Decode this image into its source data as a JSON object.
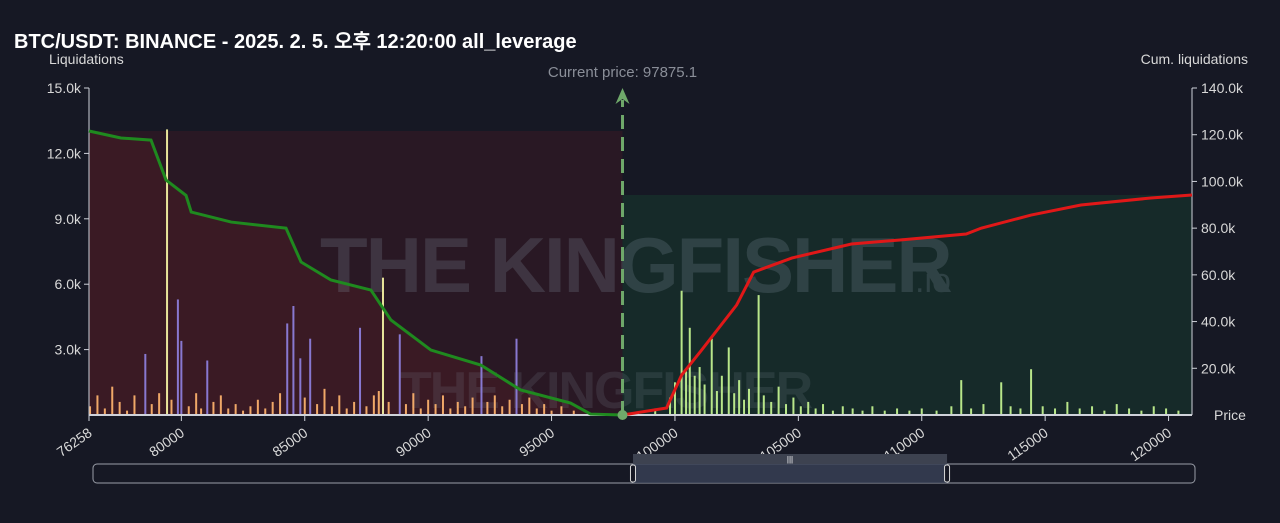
{
  "title": "BTC/USDT: BINANCE - 2025. 2. 5. 오후 12:20:00 all_leverage",
  "colors": {
    "bg": "#161824",
    "short": "#f0a868",
    "long": "#b8e68a",
    "purple": "#8878d0",
    "yellow": "#e8e49a",
    "cum_left": "#1f8a1f",
    "cum_right": "#e01818",
    "fill_left": "#3a1a24",
    "fill_right": "#16302a",
    "current": "#6fa86a"
  },
  "chart_data": {
    "type": "bar",
    "title": "BTC/USDT: BINANCE - 2025. 2. 5. 오후 12:20:00 all_leverage",
    "xlabel": "Price",
    "ylabel_left": "Liquidations",
    "ylabel_right": "Cum. liquidations",
    "xlim": [
      76258,
      120950
    ],
    "ylim_left": [
      0,
      15000
    ],
    "ylim_right": [
      0,
      140000
    ],
    "x_ticks": [
      "76258",
      "80000",
      "85000",
      "90000",
      "95000",
      "100000",
      "105000",
      "110000",
      "115000",
      "120000"
    ],
    "x_tick_values": [
      76258,
      80000,
      85000,
      90000,
      95000,
      100000,
      105000,
      110000,
      115000,
      120000
    ],
    "y_ticks_left": [
      "3.0k",
      "6.0k",
      "9.0k",
      "12.0k",
      "15.0k"
    ],
    "y_tick_values_left": [
      3000,
      6000,
      9000,
      12000,
      15000
    ],
    "y_ticks_right": [
      "20.0k",
      "40.0k",
      "60.0k",
      "80.0k",
      "100.0k",
      "120.0k",
      "140.0k"
    ],
    "y_tick_values_right": [
      20000,
      40000,
      60000,
      80000,
      100000,
      120000,
      140000
    ],
    "current_price": 97875.1,
    "current_price_label": "Current price: 97875.1",
    "bars": [
      [
        76300,
        400,
        "short"
      ],
      [
        76600,
        900,
        "short"
      ],
      [
        76900,
        300,
        "short"
      ],
      [
        77200,
        1300,
        "short"
      ],
      [
        77500,
        600,
        "short"
      ],
      [
        77800,
        200,
        "short"
      ],
      [
        78100,
        900,
        "short"
      ],
      [
        78540,
        2800,
        "purple"
      ],
      [
        78800,
        500,
        "short"
      ],
      [
        79100,
        1000,
        "short"
      ],
      [
        79420,
        13100,
        "yellow"
      ],
      [
        79600,
        700,
        "short"
      ],
      [
        79860,
        5300,
        "purple"
      ],
      [
        80000,
        3400,
        "purple"
      ],
      [
        80300,
        400,
        "short"
      ],
      [
        80600,
        1000,
        "short"
      ],
      [
        80800,
        300,
        "short"
      ],
      [
        81050,
        2500,
        "purple"
      ],
      [
        81300,
        600,
        "short"
      ],
      [
        81600,
        900,
        "short"
      ],
      [
        81900,
        300,
        "short"
      ],
      [
        82200,
        500,
        "short"
      ],
      [
        82500,
        200,
        "short"
      ],
      [
        82800,
        400,
        "short"
      ],
      [
        83100,
        700,
        "short"
      ],
      [
        83400,
        300,
        "short"
      ],
      [
        83700,
        600,
        "short"
      ],
      [
        84000,
        1000,
        "short"
      ],
      [
        84290,
        4200,
        "purple"
      ],
      [
        84540,
        5000,
        "purple"
      ],
      [
        84820,
        2600,
        "purple"
      ],
      [
        85000,
        800,
        "short"
      ],
      [
        85220,
        3500,
        "purple"
      ],
      [
        85500,
        500,
        "short"
      ],
      [
        85800,
        1200,
        "short"
      ],
      [
        86100,
        400,
        "short"
      ],
      [
        86400,
        900,
        "short"
      ],
      [
        86700,
        300,
        "short"
      ],
      [
        87000,
        600,
        "short"
      ],
      [
        87240,
        4000,
        "purple"
      ],
      [
        87500,
        400,
        "short"
      ],
      [
        87800,
        900,
        "short"
      ],
      [
        88000,
        1100,
        "short"
      ],
      [
        88170,
        6300,
        "yellow"
      ],
      [
        88400,
        600,
        "short"
      ],
      [
        88850,
        3700,
        "purple"
      ],
      [
        89100,
        500,
        "short"
      ],
      [
        89400,
        1000,
        "short"
      ],
      [
        89700,
        300,
        "short"
      ],
      [
        90000,
        700,
        "short"
      ],
      [
        90300,
        500,
        "short"
      ],
      [
        90600,
        900,
        "short"
      ],
      [
        90900,
        300,
        "short"
      ],
      [
        91200,
        600,
        "short"
      ],
      [
        91500,
        400,
        "short"
      ],
      [
        91800,
        800,
        "short"
      ],
      [
        92160,
        2700,
        "purple"
      ],
      [
        92400,
        600,
        "short"
      ],
      [
        92700,
        900,
        "short"
      ],
      [
        93000,
        400,
        "short"
      ],
      [
        93300,
        700,
        "short"
      ],
      [
        93580,
        3500,
        "purple"
      ],
      [
        93800,
        500,
        "short"
      ],
      [
        94100,
        800,
        "short"
      ],
      [
        94400,
        300,
        "short"
      ],
      [
        94700,
        500,
        "short"
      ],
      [
        95000,
        200,
        "short"
      ],
      [
        95400,
        400,
        "short"
      ],
      [
        95900,
        200,
        "short"
      ],
      [
        98500,
        150,
        "long"
      ],
      [
        99200,
        300,
        "long"
      ],
      [
        99800,
        800,
        "long"
      ],
      [
        100000,
        1500,
        "long"
      ],
      [
        100270,
        5700,
        "long"
      ],
      [
        100450,
        2000,
        "long"
      ],
      [
        100600,
        4000,
        "long"
      ],
      [
        100800,
        1800,
        "long"
      ],
      [
        101000,
        2200,
        "long"
      ],
      [
        101200,
        1400,
        "long"
      ],
      [
        101490,
        3500,
        "long"
      ],
      [
        101700,
        1100,
        "long"
      ],
      [
        101900,
        1800,
        "long"
      ],
      [
        102180,
        3100,
        "long"
      ],
      [
        102400,
        1000,
        "long"
      ],
      [
        102600,
        1600,
        "long"
      ],
      [
        102800,
        700,
        "long"
      ],
      [
        103000,
        1200,
        "long"
      ],
      [
        103390,
        5500,
        "long"
      ],
      [
        103600,
        900,
        "long"
      ],
      [
        103900,
        600,
        "long"
      ],
      [
        104200,
        1300,
        "long"
      ],
      [
        104500,
        500,
        "long"
      ],
      [
        104800,
        800,
        "long"
      ],
      [
        105100,
        400,
        "long"
      ],
      [
        105400,
        600,
        "long"
      ],
      [
        105700,
        300,
        "long"
      ],
      [
        106000,
        500,
        "long"
      ],
      [
        106400,
        200,
        "long"
      ],
      [
        106800,
        400,
        "long"
      ],
      [
        107200,
        300,
        "long"
      ],
      [
        107600,
        200,
        "long"
      ],
      [
        108000,
        400,
        "long"
      ],
      [
        108500,
        200,
        "long"
      ],
      [
        109000,
        300,
        "long"
      ],
      [
        109500,
        200,
        "long"
      ],
      [
        110000,
        300,
        "long"
      ],
      [
        110600,
        200,
        "long"
      ],
      [
        111200,
        400,
        "long"
      ],
      [
        111600,
        1600,
        "long"
      ],
      [
        112000,
        300,
        "long"
      ],
      [
        112500,
        500,
        "long"
      ],
      [
        113220,
        1500,
        "long"
      ],
      [
        113600,
        400,
        "long"
      ],
      [
        114000,
        300,
        "long"
      ],
      [
        114430,
        2100,
        "long"
      ],
      [
        114900,
        400,
        "long"
      ],
      [
        115400,
        300,
        "long"
      ],
      [
        115900,
        600,
        "long"
      ],
      [
        116400,
        300,
        "long"
      ],
      [
        116900,
        400,
        "long"
      ],
      [
        117400,
        200,
        "long"
      ],
      [
        117900,
        500,
        "long"
      ],
      [
        118400,
        300,
        "long"
      ],
      [
        118900,
        200,
        "long"
      ],
      [
        119400,
        400,
        "long"
      ],
      [
        119900,
        300,
        "long"
      ],
      [
        120400,
        200,
        "long"
      ]
    ],
    "cum_left": [
      [
        76258,
        121600
      ],
      [
        77550,
        118600
      ],
      [
        78770,
        117700
      ],
      [
        79380,
        100600
      ],
      [
        80190,
        94000
      ],
      [
        80400,
        86900
      ],
      [
        82020,
        82600
      ],
      [
        84240,
        80000
      ],
      [
        84850,
        65500
      ],
      [
        86060,
        57800
      ],
      [
        87680,
        53500
      ],
      [
        88490,
        40700
      ],
      [
        90110,
        27800
      ],
      [
        92130,
        21400
      ],
      [
        93750,
        10700
      ],
      [
        95770,
        5100
      ],
      [
        96580,
        400
      ],
      [
        97875,
        0
      ]
    ],
    "cum_right": [
      [
        97875,
        0
      ],
      [
        99660,
        3000
      ],
      [
        100270,
        17100
      ],
      [
        101080,
        27800
      ],
      [
        102500,
        47100
      ],
      [
        103190,
        61200
      ],
      [
        104730,
        67200
      ],
      [
        107150,
        73200
      ],
      [
        109180,
        75000
      ],
      [
        111800,
        77500
      ],
      [
        112410,
        80000
      ],
      [
        114430,
        85600
      ],
      [
        116450,
        89900
      ],
      [
        119280,
        92900
      ],
      [
        120950,
        94200
      ]
    ]
  },
  "watermark": "THE KINGFISHER",
  "watermark_suffix": ".io",
  "zoom_slider": {
    "start": 0.49,
    "end": 0.775
  }
}
